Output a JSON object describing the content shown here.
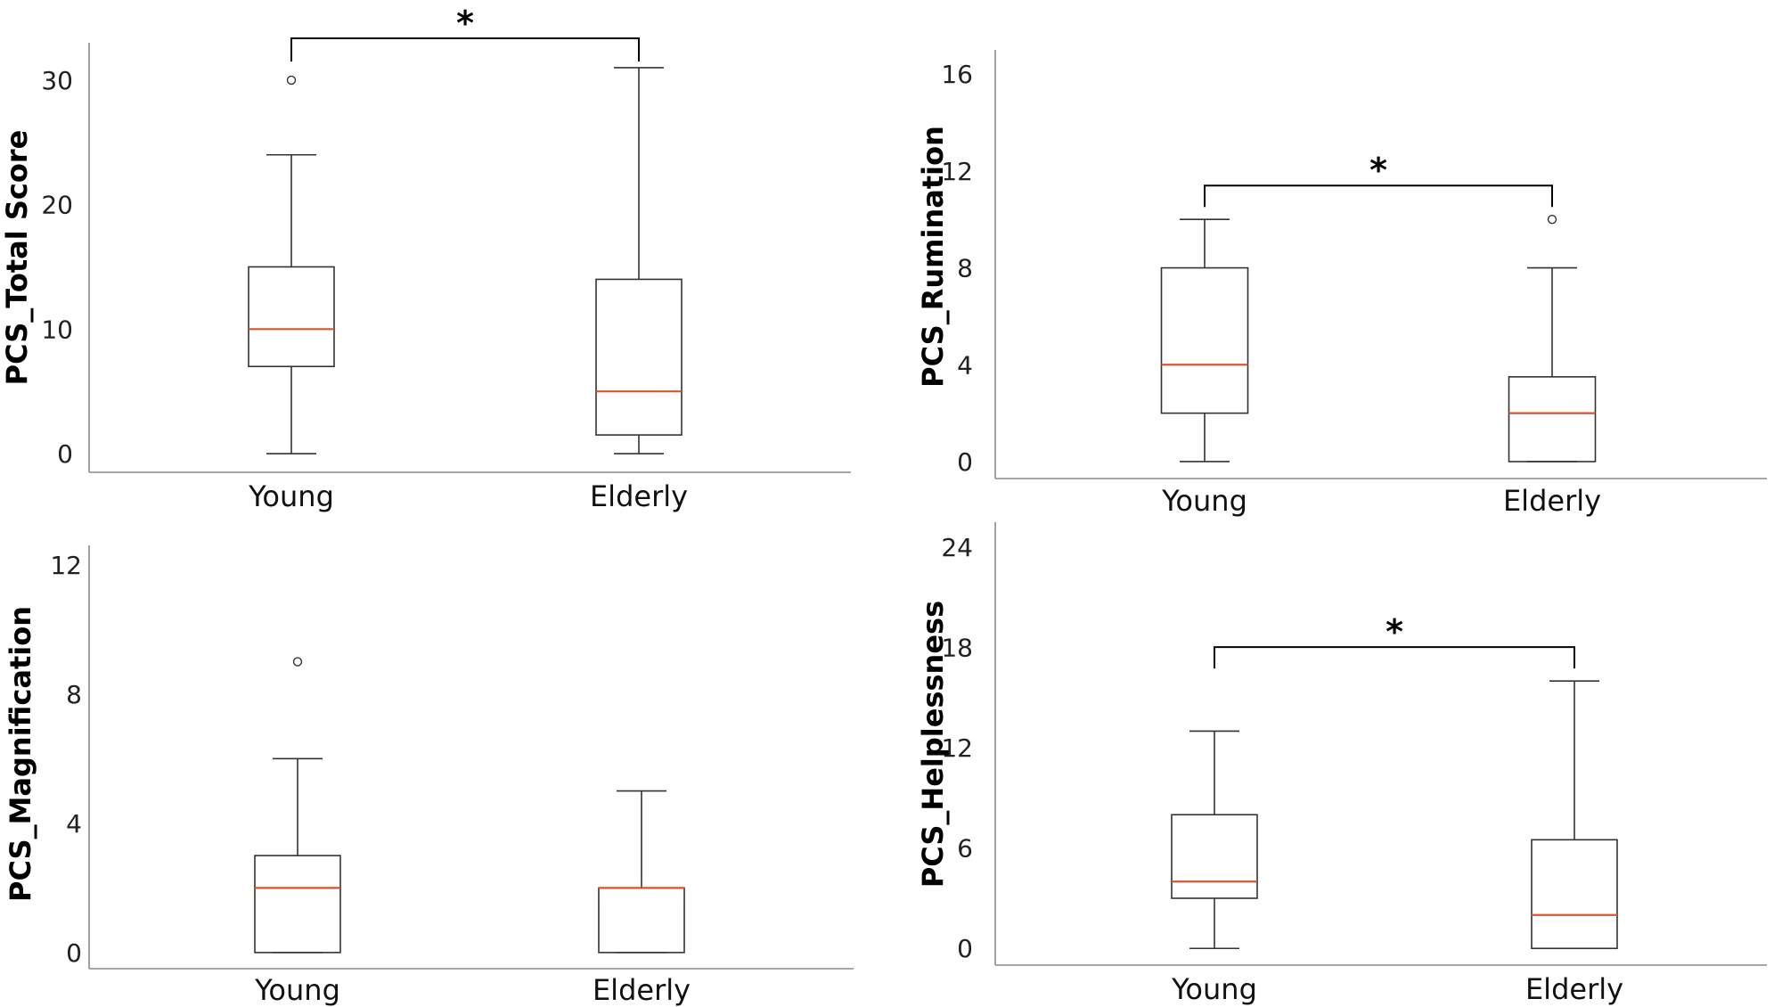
{
  "chart_data": [
    {
      "type": "boxplot",
      "ylabel": "PCS_Total Score",
      "xlabel": "",
      "categories": [
        "Young",
        "Elderly"
      ],
      "ylim": [
        -1.5,
        33
      ],
      "yticks": [
        0,
        10,
        20,
        30
      ],
      "grid": false,
      "series": [
        {
          "name": "Young",
          "min": 0,
          "q1": 7,
          "median": 10,
          "q3": 15,
          "max": 24,
          "outliers": [
            30
          ]
        },
        {
          "name": "Elderly",
          "min": 0,
          "q1": 1.5,
          "median": 5,
          "q3": 14,
          "max": 31,
          "outliers": []
        }
      ],
      "significance": [
        {
          "from": "Young",
          "to": "Elderly",
          "label": "*"
        }
      ]
    },
    {
      "type": "boxplot",
      "ylabel": "PCS_Rumination",
      "xlabel": "",
      "categories": [
        "Young",
        "Elderly"
      ],
      "ylim": [
        -0.7,
        17
      ],
      "yticks": [
        0,
        4,
        8,
        12,
        16
      ],
      "grid": false,
      "series": [
        {
          "name": "Young",
          "min": 0,
          "q1": 2,
          "median": 4,
          "q3": 8,
          "max": 10,
          "outliers": []
        },
        {
          "name": "Elderly",
          "min": 0,
          "q1": 0,
          "median": 2,
          "q3": 3.5,
          "max": 8,
          "outliers": [
            10
          ]
        }
      ],
      "significance": [
        {
          "from": "Young",
          "to": "Elderly",
          "label": "*"
        }
      ]
    },
    {
      "type": "boxplot",
      "ylabel": "PCS_Magnification",
      "xlabel": "",
      "categories": [
        "Young",
        "Elderly"
      ],
      "ylim": [
        -0.5,
        12.6
      ],
      "yticks": [
        0,
        4,
        8,
        12
      ],
      "grid": false,
      "series": [
        {
          "name": "Young",
          "min": 0,
          "q1": 0,
          "median": 2,
          "q3": 3,
          "max": 6,
          "outliers": [
            9
          ]
        },
        {
          "name": "Elderly",
          "min": 0,
          "q1": 0,
          "median": 2,
          "q3": 2,
          "max": 5,
          "outliers": []
        }
      ],
      "significance": []
    },
    {
      "type": "boxplot",
      "ylabel": "PCS_Helplessness",
      "xlabel": "",
      "categories": [
        "Young",
        "Elderly"
      ],
      "ylim": [
        -1,
        25.5
      ],
      "yticks": [
        0,
        6,
        12,
        18,
        24
      ],
      "grid": false,
      "series": [
        {
          "name": "Young",
          "min": 0,
          "q1": 3,
          "median": 4,
          "q3": 8,
          "max": 13,
          "outliers": []
        },
        {
          "name": "Elderly",
          "min": 0,
          "q1": 0,
          "median": 2,
          "q3": 6.5,
          "max": 16,
          "outliers": []
        }
      ],
      "significance": [
        {
          "from": "Young",
          "to": "Elderly",
          "label": "*"
        }
      ]
    }
  ],
  "colors": {
    "median": "#d9542b",
    "box": "#333333",
    "axis": "#8a8a8a",
    "bracket": "#000000"
  }
}
